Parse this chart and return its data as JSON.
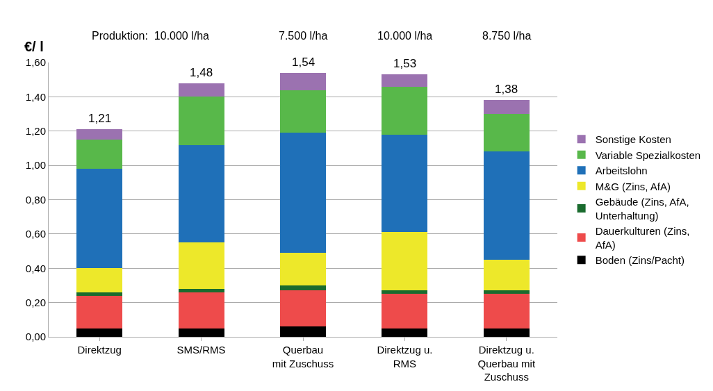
{
  "chart_data": {
    "type": "bar",
    "stacked": true,
    "ylabel": "€/ l",
    "categories": [
      "Direktzug",
      "SMS/RMS",
      "Querbau\nmit Zuschuss",
      "Direktzug u.\nRMS",
      "Direktzug u.\nQuerbau mit\nZuschuss"
    ],
    "series": [
      {
        "name": "Boden (Zins/Pacht)",
        "color": "#000000",
        "values": [
          0.05,
          0.05,
          0.06,
          0.05,
          0.05
        ]
      },
      {
        "name": "Dauerkulturen (Zins,\nAfA)",
        "color": "#ee4b4b",
        "values": [
          0.19,
          0.21,
          0.21,
          0.2,
          0.2
        ]
      },
      {
        "name": "Gebäude (Zins, AfA,\nUnterhaltung)",
        "color": "#1a6b2e",
        "values": [
          0.02,
          0.02,
          0.03,
          0.02,
          0.02
        ]
      },
      {
        "name": "M&G (Zins, AfA)",
        "color": "#ede82a",
        "values": [
          0.14,
          0.27,
          0.19,
          0.34,
          0.18
        ]
      },
      {
        "name": "Arbeitslohn",
        "color": "#1f70b8",
        "values": [
          0.58,
          0.57,
          0.7,
          0.57,
          0.63
        ]
      },
      {
        "name": "Variable Spezialkosten",
        "color": "#58b84a",
        "values": [
          0.17,
          0.28,
          0.25,
          0.28,
          0.22
        ]
      },
      {
        "name": "Sonstige Kosten",
        "color": "#9b72b0",
        "values": [
          0.06,
          0.08,
          0.1,
          0.07,
          0.08
        ]
      }
    ],
    "totals": [
      "1,21",
      "1,48",
      "1,54",
      "1,53",
      "1,38"
    ],
    "annotations": [
      "Produktion:  10.000 l/ha",
      "7.500 l/ha",
      "10.000 l/ha",
      "8.750 l/ha"
    ],
    "ylim": [
      0,
      1.6
    ],
    "yticks": [
      {
        "value": 0,
        "label": "0,00"
      },
      {
        "value": 0.2,
        "label": "0,20"
      },
      {
        "value": 0.4,
        "label": "0,40"
      },
      {
        "value": 0.6,
        "label": "0,60"
      },
      {
        "value": 0.8,
        "label": "0,80"
      },
      {
        "value": 1.0,
        "label": "1,00"
      },
      {
        "value": 1.2,
        "label": "1,20"
      },
      {
        "value": 1.4,
        "label": "1,40"
      },
      {
        "value": 1.6,
        "label": "1,60"
      }
    ],
    "grid": "y",
    "legend": "right"
  }
}
